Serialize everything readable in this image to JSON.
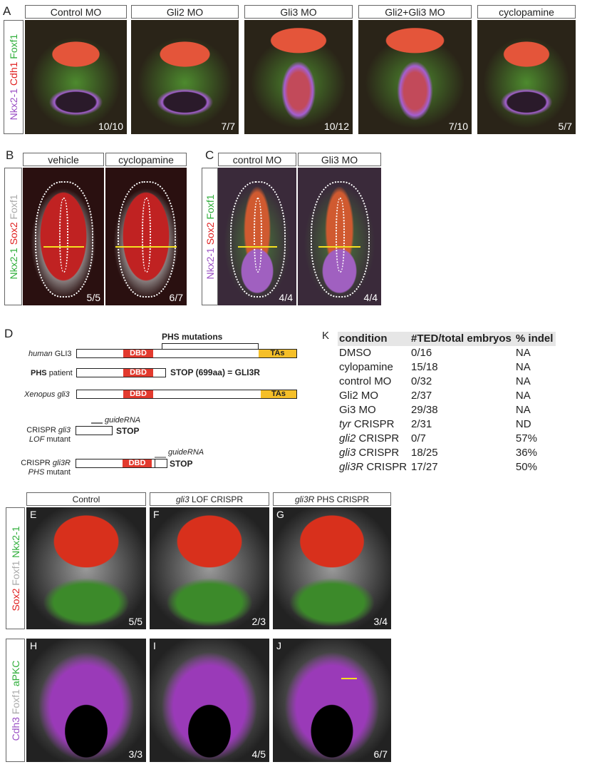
{
  "panel_a": {
    "label": "A",
    "side": [
      "Nkx2-1",
      "Cdh1",
      "Foxf1"
    ],
    "panels": [
      {
        "header": "Control MO",
        "count": "10/10"
      },
      {
        "header": "Gli2 MO",
        "count": "7/7"
      },
      {
        "header": "Gli3 MO",
        "count": "10/12"
      },
      {
        "header": "Gli2+Gli3 MO",
        "count": "7/10"
      },
      {
        "header": "cyclopamine",
        "count": "5/7"
      }
    ]
  },
  "panel_b": {
    "label": "B",
    "side": [
      "Nkx2-1",
      "Sox2",
      "Foxf1"
    ],
    "panels": [
      {
        "header": "vehicle",
        "count": "5/5"
      },
      {
        "header": "cyclopamine",
        "count": "6/7"
      }
    ]
  },
  "panel_c": {
    "label": "C",
    "side": [
      "Nkx2-1",
      "Sox2",
      "Foxf1"
    ],
    "panels": [
      {
        "header": "control MO",
        "count": "4/4"
      },
      {
        "header": "Gli3 MO",
        "count": "4/4"
      }
    ]
  },
  "panel_d": {
    "label": "D",
    "phs_mutations": "PHS mutations",
    "dbd": "DBD",
    "tas": "TAs",
    "rows": {
      "human": [
        "human",
        "GLI3"
      ],
      "phs": [
        "PHS",
        "patient"
      ],
      "phs_stop": "STOP (699aa) = GLI3R",
      "xenopus": "Xenopus gli3",
      "lof": [
        "CRISPR",
        "gli3",
        "LOF",
        "mutant"
      ],
      "gli3r": [
        "CRISPR",
        "gli3R",
        "PHS",
        "mutant"
      ],
      "guide": "guideRNA",
      "stop": "STOP"
    }
  },
  "panel_k": {
    "label": "K",
    "headers": [
      "condition",
      "#TED/total embryos",
      "% indel"
    ],
    "rows": [
      [
        "DMSO",
        "0/16",
        "NA"
      ],
      [
        "cylopamine",
        "15/18",
        "NA"
      ],
      [
        "control MO",
        "0/32",
        "NA"
      ],
      [
        "Gli2 MO",
        "2/37",
        "NA"
      ],
      [
        "Gi3 MO",
        "29/38",
        "NA"
      ],
      [
        "tyr CRISPR",
        "2/31",
        "ND"
      ],
      [
        "gli2 CRISPR",
        "0/7",
        "57%"
      ],
      [
        "gli3 CRISPR",
        "18/25",
        "36%"
      ],
      [
        "gli3R CRISPR",
        "17/27",
        "50%"
      ]
    ],
    "italic_prefix": [
      "",
      "",
      "",
      "",
      "",
      "tyr",
      "gli2",
      "gli3",
      "gli3R"
    ]
  },
  "panel_efg": {
    "side": [
      "Sox2",
      "Foxf1",
      "Nkx2-1"
    ],
    "headers": [
      "Control",
      "gli3 LOF CRISPR",
      "gli3R PHS CRISPR"
    ],
    "labels": [
      "E",
      "F",
      "G"
    ],
    "counts": [
      "5/5",
      "2/3",
      "3/4"
    ]
  },
  "panel_hij": {
    "side": [
      "Cdh3",
      "Foxf1",
      "aPKC"
    ],
    "labels": [
      "H",
      "I",
      "J"
    ],
    "counts": [
      "3/3",
      "4/5",
      "6/7"
    ]
  },
  "colors": {
    "purple": "#9a4fc4",
    "red": "#e02020",
    "green": "#2fae3a",
    "grey": "#aaaaaa",
    "yellow_arrow": "#f5e020",
    "dbd": "#e23a2e",
    "tas": "#f5bf28"
  }
}
